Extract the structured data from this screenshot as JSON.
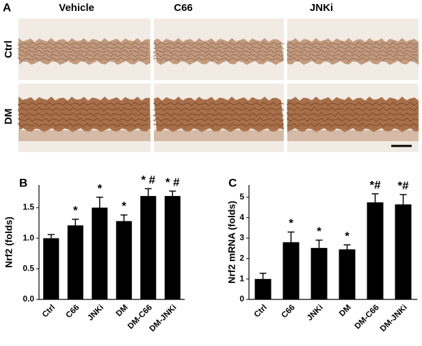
{
  "panel_a": {
    "label": "A",
    "columns": [
      "Vehicle",
      "C66",
      "JNKi"
    ],
    "rows": [
      "Ctrl",
      "DM"
    ]
  },
  "chart_data": [
    {
      "type": "bar",
      "label": "B",
      "ylabel": "Nrf2 (folds)",
      "categories": [
        "Ctrl",
        "C66",
        "JNKi",
        "DM",
        "DM-C66",
        "DM-JNKi"
      ],
      "values": [
        1.0,
        1.21,
        1.5,
        1.28,
        1.69,
        1.69
      ],
      "errors": [
        0.06,
        0.1,
        0.17,
        0.1,
        0.12,
        0.08
      ],
      "annotations": [
        null,
        "*",
        "*",
        "*",
        "* #",
        "* #"
      ],
      "color": "#000000",
      "ylim": [
        0,
        1.87
      ],
      "yticks": [
        {
          "value": 0,
          "label": "0.0"
        },
        0.5,
        {
          "value": 1,
          "label": "1.0"
        },
        1.5
      ]
    },
    {
      "type": "bar",
      "label": "C",
      "ylabel": "Nrf2 mRNA (folds)",
      "categories": [
        "Ctrl",
        "C66",
        "JNKi",
        "DM",
        "DM-C66",
        "DM-JNKi"
      ],
      "values": [
        1.0,
        2.8,
        2.52,
        2.45,
        4.75,
        4.65
      ],
      "errors": [
        0.28,
        0.5,
        0.38,
        0.22,
        0.42,
        0.48
      ],
      "annotations": [
        null,
        "*",
        "*",
        "*",
        "*#",
        "*#"
      ],
      "color": "#000000",
      "ylim": [
        0,
        5.6
      ],
      "yticks": [
        0,
        1,
        2,
        3,
        4,
        5
      ]
    }
  ]
}
